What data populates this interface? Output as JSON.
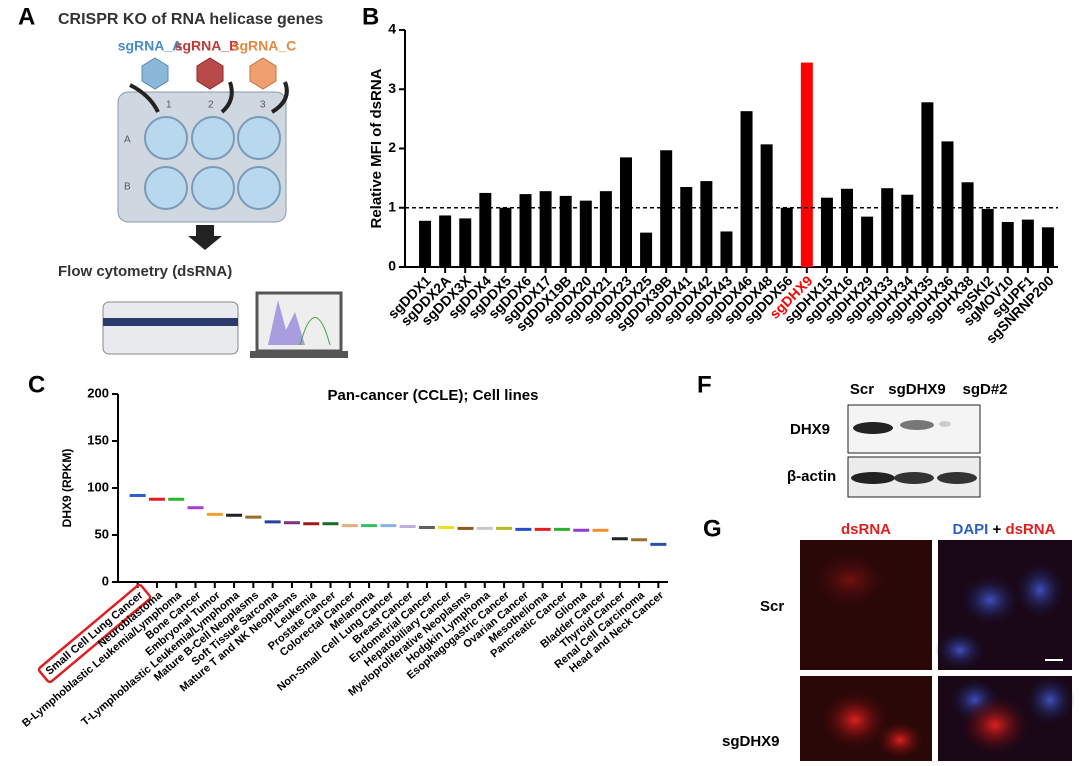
{
  "panel_labels": [
    "A",
    "B",
    "C",
    "F",
    "G"
  ],
  "panel_a": {
    "title": "CRISPR KO of RNA helicase genes",
    "sgrnas": [
      "sgRNA_A",
      "sgRNA_B",
      "sgRNA_C"
    ],
    "plate_columns": [
      "1",
      "2",
      "3"
    ],
    "plate_rows": [
      "A",
      "B"
    ],
    "readout": "Flow cytometry (dsRNA)"
  },
  "chart_data": [
    {
      "type": "bar",
      "y_label": "Relative MFI of dsRNA",
      "categories": [
        "sgDDX1",
        "sgDDX2A",
        "sgDDX3X",
        "sgDDX4",
        "sgDDX5",
        "sgDDX6",
        "sgDDX17",
        "sgDDX19B",
        "sgDDX20",
        "sgDDX21",
        "sgDDX23",
        "sgDDX25",
        "sgDDX39B",
        "sgDDX41",
        "sgDDX42",
        "sgDDX43",
        "sgDDX46",
        "sgDDX48",
        "sgDDX56",
        "sgDHX9",
        "sgDHX15",
        "sgDHX16",
        "sgDHX29",
        "sgDHX33",
        "sgDHX34",
        "sgDHX35",
        "sgDHX36",
        "sgDHX38",
        "sgSKI2",
        "sgMOV10",
        "sgUPF1",
        "sgSNRNP200"
      ],
      "values": [
        0.78,
        0.87,
        0.82,
        1.25,
        1.0,
        1.23,
        1.28,
        1.2,
        1.12,
        1.28,
        1.85,
        0.58,
        1.97,
        1.35,
        1.45,
        0.6,
        2.63,
        2.07,
        1.0,
        3.45,
        1.17,
        1.32,
        0.85,
        1.33,
        1.22,
        2.78,
        2.12,
        1.43,
        0.98,
        0.76,
        0.8,
        0.67
      ],
      "colors": [
        "#000",
        "#000",
        "#000",
        "#000",
        "#000",
        "#000",
        "#000",
        "#000",
        "#000",
        "#000",
        "#000",
        "#000",
        "#000",
        "#000",
        "#000",
        "#000",
        "#000",
        "#000",
        "#000",
        "#ff0000",
        "#000",
        "#000",
        "#000",
        "#000",
        "#000",
        "#000",
        "#000",
        "#000",
        "#000",
        "#000",
        "#000",
        "#000"
      ],
      "reference_line": 1,
      "ylim": [
        0,
        4
      ],
      "yticks": [
        0,
        1,
        2,
        3,
        4
      ]
    },
    {
      "type": "median",
      "title": "Pan-cancer (CCLE); Cell lines",
      "y_label": "DHX9 (RPKM)",
      "categories": [
        "Small Cell Lung Cancer",
        "Neuroblastoma",
        "B-Lymphoblastic Leukemia/Lymphoma",
        "Bone Cancer",
        "Embryonal Tumor",
        "T-Lymphoblastic Leukemia/Lymphoma",
        "Mature B-Cell Neoplasms",
        "Soft Tissue Sarcoma",
        "Mature T and NK Neoplasms",
        "Leukemia",
        "Prostate Cancer",
        "Colorectal Cancer",
        "Melanoma",
        "Non-Small Cell Lung Cancer",
        "Breast Cancer",
        "Endometrial Cancer",
        "Hepatobiliary Cancer",
        "Myeloproliferative Neoplasms",
        "Hodgkin Lymphoma",
        "Esophagogastric Cancer",
        "Ovarian Cancer",
        "Mesothelioma",
        "Pancreatic Cancer",
        "Glioma",
        "Bladder Cancer",
        "Thyroid Cancer",
        "Renal Cell Carcinoma",
        "Head and Neck Cancer"
      ],
      "values": [
        92,
        88,
        88,
        79,
        72,
        71,
        69,
        64,
        63,
        62,
        62,
        60,
        60,
        60,
        59,
        58,
        58,
        57,
        57,
        57,
        56,
        56,
        56,
        55,
        55,
        46,
        45,
        40
      ],
      "colors": [
        "#2f5fd0",
        "#e02020",
        "#2cb82c",
        "#a040d0",
        "#f0a030",
        "#222222",
        "#9a6a30",
        "#2a3f9a",
        "#803080",
        "#a01818",
        "#1a6a2a",
        "#e0b080",
        "#30c060",
        "#8ab0e8",
        "#c0b0e0",
        "#606060",
        "#e8e020",
        "#8a5a20",
        "#c8c8c8",
        "#b8b820",
        "#2050d0",
        "#e02020",
        "#30b030",
        "#9040d0",
        "#f09030",
        "#222222",
        "#9a7030",
        "#2a50b0"
      ],
      "ylim": [
        0,
        200
      ],
      "yticks": [
        0,
        50,
        100,
        150,
        200
      ]
    }
  ],
  "panel_f": {
    "lanes": [
      "Scr",
      "sgDHX9",
      "sgD#2"
    ],
    "rows": [
      "DHX9",
      "β-actin"
    ]
  },
  "panel_g": {
    "columns": [
      "dsRNA",
      "DAPI",
      "+",
      "dsRNA"
    ],
    "rows": [
      "Scr",
      "sgDHX9"
    ]
  }
}
